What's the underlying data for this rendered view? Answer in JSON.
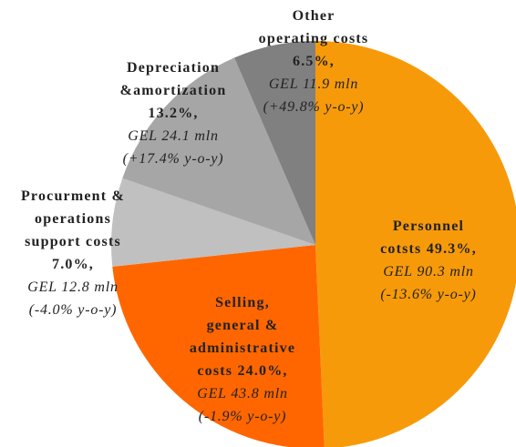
{
  "chart_data": {
    "type": "pie",
    "categories": [
      [
        "Personnel",
        "cotsts"
      ],
      [
        "Selling,",
        "general &",
        "administrative",
        "costs"
      ],
      [
        "Procurment &",
        "operations",
        "support costs"
      ],
      [
        "Depreciation",
        "&amortization"
      ],
      [
        "Other",
        "operating costs"
      ]
    ],
    "values": [
      49.3,
      24.0,
      7.0,
      13.2,
      6.5
    ],
    "value_labels": [
      "49.3%,",
      "24.0%,",
      "7.0%,",
      "13.2%,",
      "6.5%,"
    ],
    "amounts": [
      "GEL 90.3 mln",
      "GEL 43.8 mln",
      "GEL 12.8 mln",
      "GEL 24.1 mln",
      "GEL 11.9 mln"
    ],
    "changes": [
      "(-13.6% y-o-y)",
      "(-1.9% y-o-y)",
      "(-4.0% y-o-y)",
      "(+17.4% y-o-y)",
      "(+49.8% y-o-y)"
    ],
    "colors": [
      "#F79A0A",
      "#FF6600",
      "#C0C0C0",
      "#A6A6A6",
      "#808080"
    ]
  }
}
